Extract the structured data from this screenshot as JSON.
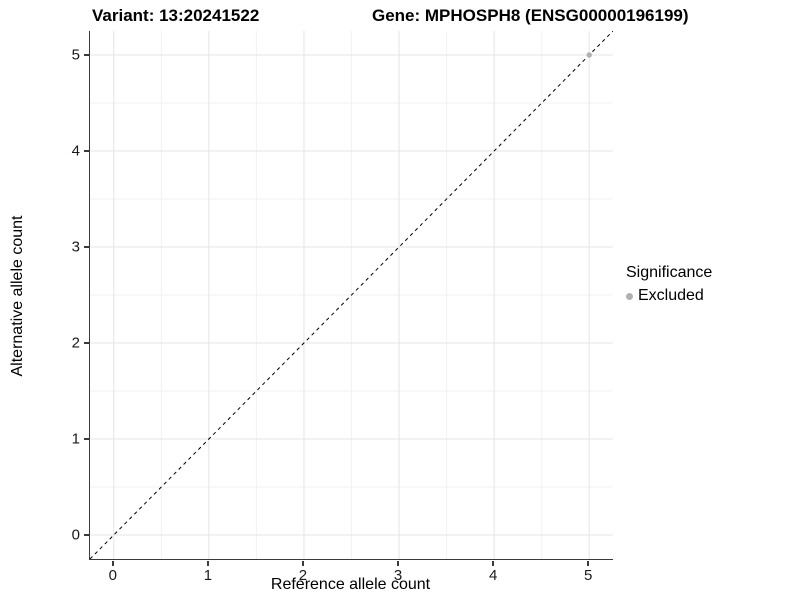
{
  "titles": {
    "left": "Variant: 13:20241522",
    "right": "Gene: MPHOSPH8 (ENSG00000196199)"
  },
  "colors": {
    "background": "#ffffff",
    "grid_major": "#e4e4e4",
    "grid_minor": "#f2f2f2",
    "axis_line": "#3a3a3a",
    "tick_text": "#1a1a1a",
    "title_text": "#000000",
    "reference_line": "#000000",
    "excluded_point": "#b0b0b0"
  },
  "chart_data": {
    "type": "scatter",
    "title": "Variant: 13:20241522   Gene: MPHOSPH8 (ENSG00000196199)",
    "xlabel": "Reference allele count",
    "ylabel": "Alternative allele count",
    "xlim": [
      -0.25,
      5.25
    ],
    "ylim": [
      -0.25,
      5.25
    ],
    "x_ticks": [
      0,
      1,
      2,
      3,
      4,
      5
    ],
    "y_ticks": [
      0,
      1,
      2,
      3,
      4,
      5
    ],
    "minor_ticks": [
      0.5,
      1.5,
      2.5,
      3.5,
      4.5
    ],
    "grid": "on",
    "reference_line": {
      "kind": "identity",
      "style": "dashed",
      "from": [
        -0.25,
        -0.25
      ],
      "to": [
        5.25,
        5.25
      ],
      "color": "#000000"
    },
    "series": [
      {
        "name": "Excluded",
        "color": "#b0b0b0",
        "points": [
          {
            "x": 5,
            "y": 5
          }
        ]
      }
    ],
    "legend": {
      "title": "Significance",
      "position": "right",
      "items": [
        {
          "label": "Excluded",
          "color": "#b0b0b0"
        }
      ]
    }
  }
}
